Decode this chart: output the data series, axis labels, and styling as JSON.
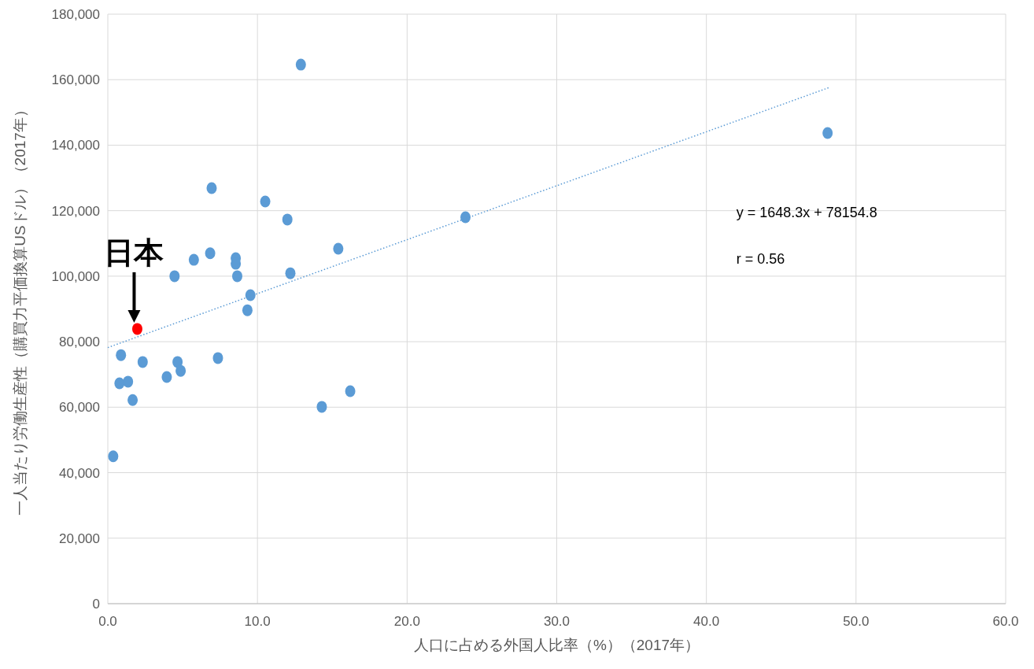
{
  "chart_data": {
    "type": "scatter",
    "xlabel": "人口に占める外国人比率（%）（2017年）",
    "ylabel": "一人当たり労働生産性（購買力平価換算USドル）（2017年）",
    "xlim": [
      0,
      60
    ],
    "ylim": [
      0,
      180000
    ],
    "xticks": [
      {
        "value": 0,
        "label": "0.0"
      },
      {
        "value": 10,
        "label": "10.0"
      },
      {
        "value": 20,
        "label": "20.0"
      },
      {
        "value": 30,
        "label": "30.0"
      },
      {
        "value": 40,
        "label": "40.0"
      },
      {
        "value": 50,
        "label": "50.0"
      },
      {
        "value": 60,
        "label": "60.0"
      }
    ],
    "yticks": [
      0,
      {
        "value": 20000,
        "label": "20,000"
      },
      {
        "value": 40000,
        "label": "40,000"
      },
      {
        "value": 60000,
        "label": "60,000"
      },
      {
        "value": 80000,
        "label": "80,000"
      },
      {
        "value": 100000,
        "label": "100,000"
      },
      {
        "value": 120000,
        "label": "120,000"
      },
      {
        "value": 140000,
        "label": "140,000"
      },
      {
        "value": 160000,
        "label": "160,000"
      },
      {
        "value": 180000,
        "label": "180,000"
      }
    ],
    "grid": true,
    "marker": "circle",
    "series": [
      {
        "color": "#5b9bd5",
        "x": [
          0.36,
          0.78,
          0.88,
          1.35,
          1.66,
          2.33,
          3.94,
          4.46,
          4.66,
          4.87,
          5.75,
          6.84,
          6.94,
          7.36,
          8.55,
          8.55,
          8.65,
          9.33,
          9.53,
          10.52,
          12.0,
          12.2,
          12.9,
          14.3,
          15.4,
          16.2,
          23.9,
          48.1
        ],
        "values": [
          45000,
          67300,
          75900,
          67800,
          62200,
          73800,
          69200,
          100000,
          73800,
          71100,
          105000,
          107000,
          126900,
          75000,
          105500,
          103800,
          100000,
          89600,
          94200,
          122800,
          117300,
          100900,
          164600,
          60100,
          108400,
          64900,
          118000,
          143700
        ]
      },
      {
        "color": "#ff0000",
        "x": [
          1.97
        ],
        "values": [
          83900
        ]
      },
      {
        "type": "line",
        "color": "#5b9bd5",
        "line_style": "dotted",
        "marker": "none",
        "x": [
          0,
          48.2
        ],
        "values": [
          78200,
          157600
        ]
      }
    ],
    "annotations": [
      {
        "text": "日本",
        "x": 1.97,
        "y": 83900
      },
      "y = 1648.3x + 78154.8",
      "r = 0.56"
    ]
  }
}
